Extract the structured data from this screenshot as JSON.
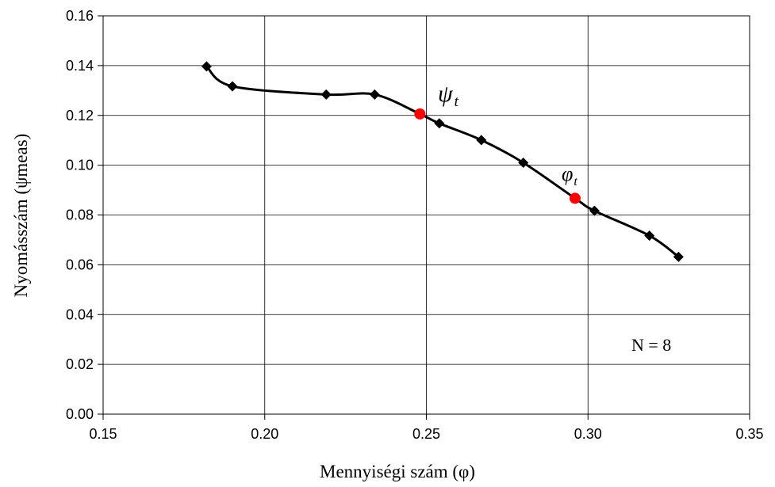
{
  "chart_data": {
    "type": "line",
    "xlabel": "Mennyiségi szám (φ)",
    "ylabel": "Nyomásszám (ψmeas)",
    "xlim": [
      0.15,
      0.35
    ],
    "ylim": [
      0.0,
      0.16
    ],
    "x_ticks": [
      "0.15",
      "0.20",
      "0.25",
      "0.30",
      "0.35"
    ],
    "y_ticks": [
      "0.00",
      "0.02",
      "0.04",
      "0.06",
      "0.08",
      "0.10",
      "0.12",
      "0.14",
      "0.16"
    ],
    "grid": true,
    "series": [
      {
        "marker": "diamond",
        "color": "#000000",
        "x": [
          0.182,
          0.19,
          0.219,
          0.234,
          0.254,
          0.267,
          0.28,
          0.302,
          0.319,
          0.328
        ],
        "y": [
          0.1397,
          0.1317,
          0.1284,
          0.1284,
          0.1168,
          0.1101,
          0.101,
          0.0817,
          0.0717,
          0.0632
        ]
      }
    ],
    "highlighted_points": [
      {
        "label": "ψ",
        "subscript": "t",
        "x": 0.248,
        "y": 0.1206,
        "color": "#ff0000"
      },
      {
        "label": "φ",
        "subscript": "t",
        "x": 0.296,
        "y": 0.0867,
        "color": "#ff0000"
      }
    ],
    "annotations": [
      {
        "text": "N = 8"
      }
    ]
  }
}
